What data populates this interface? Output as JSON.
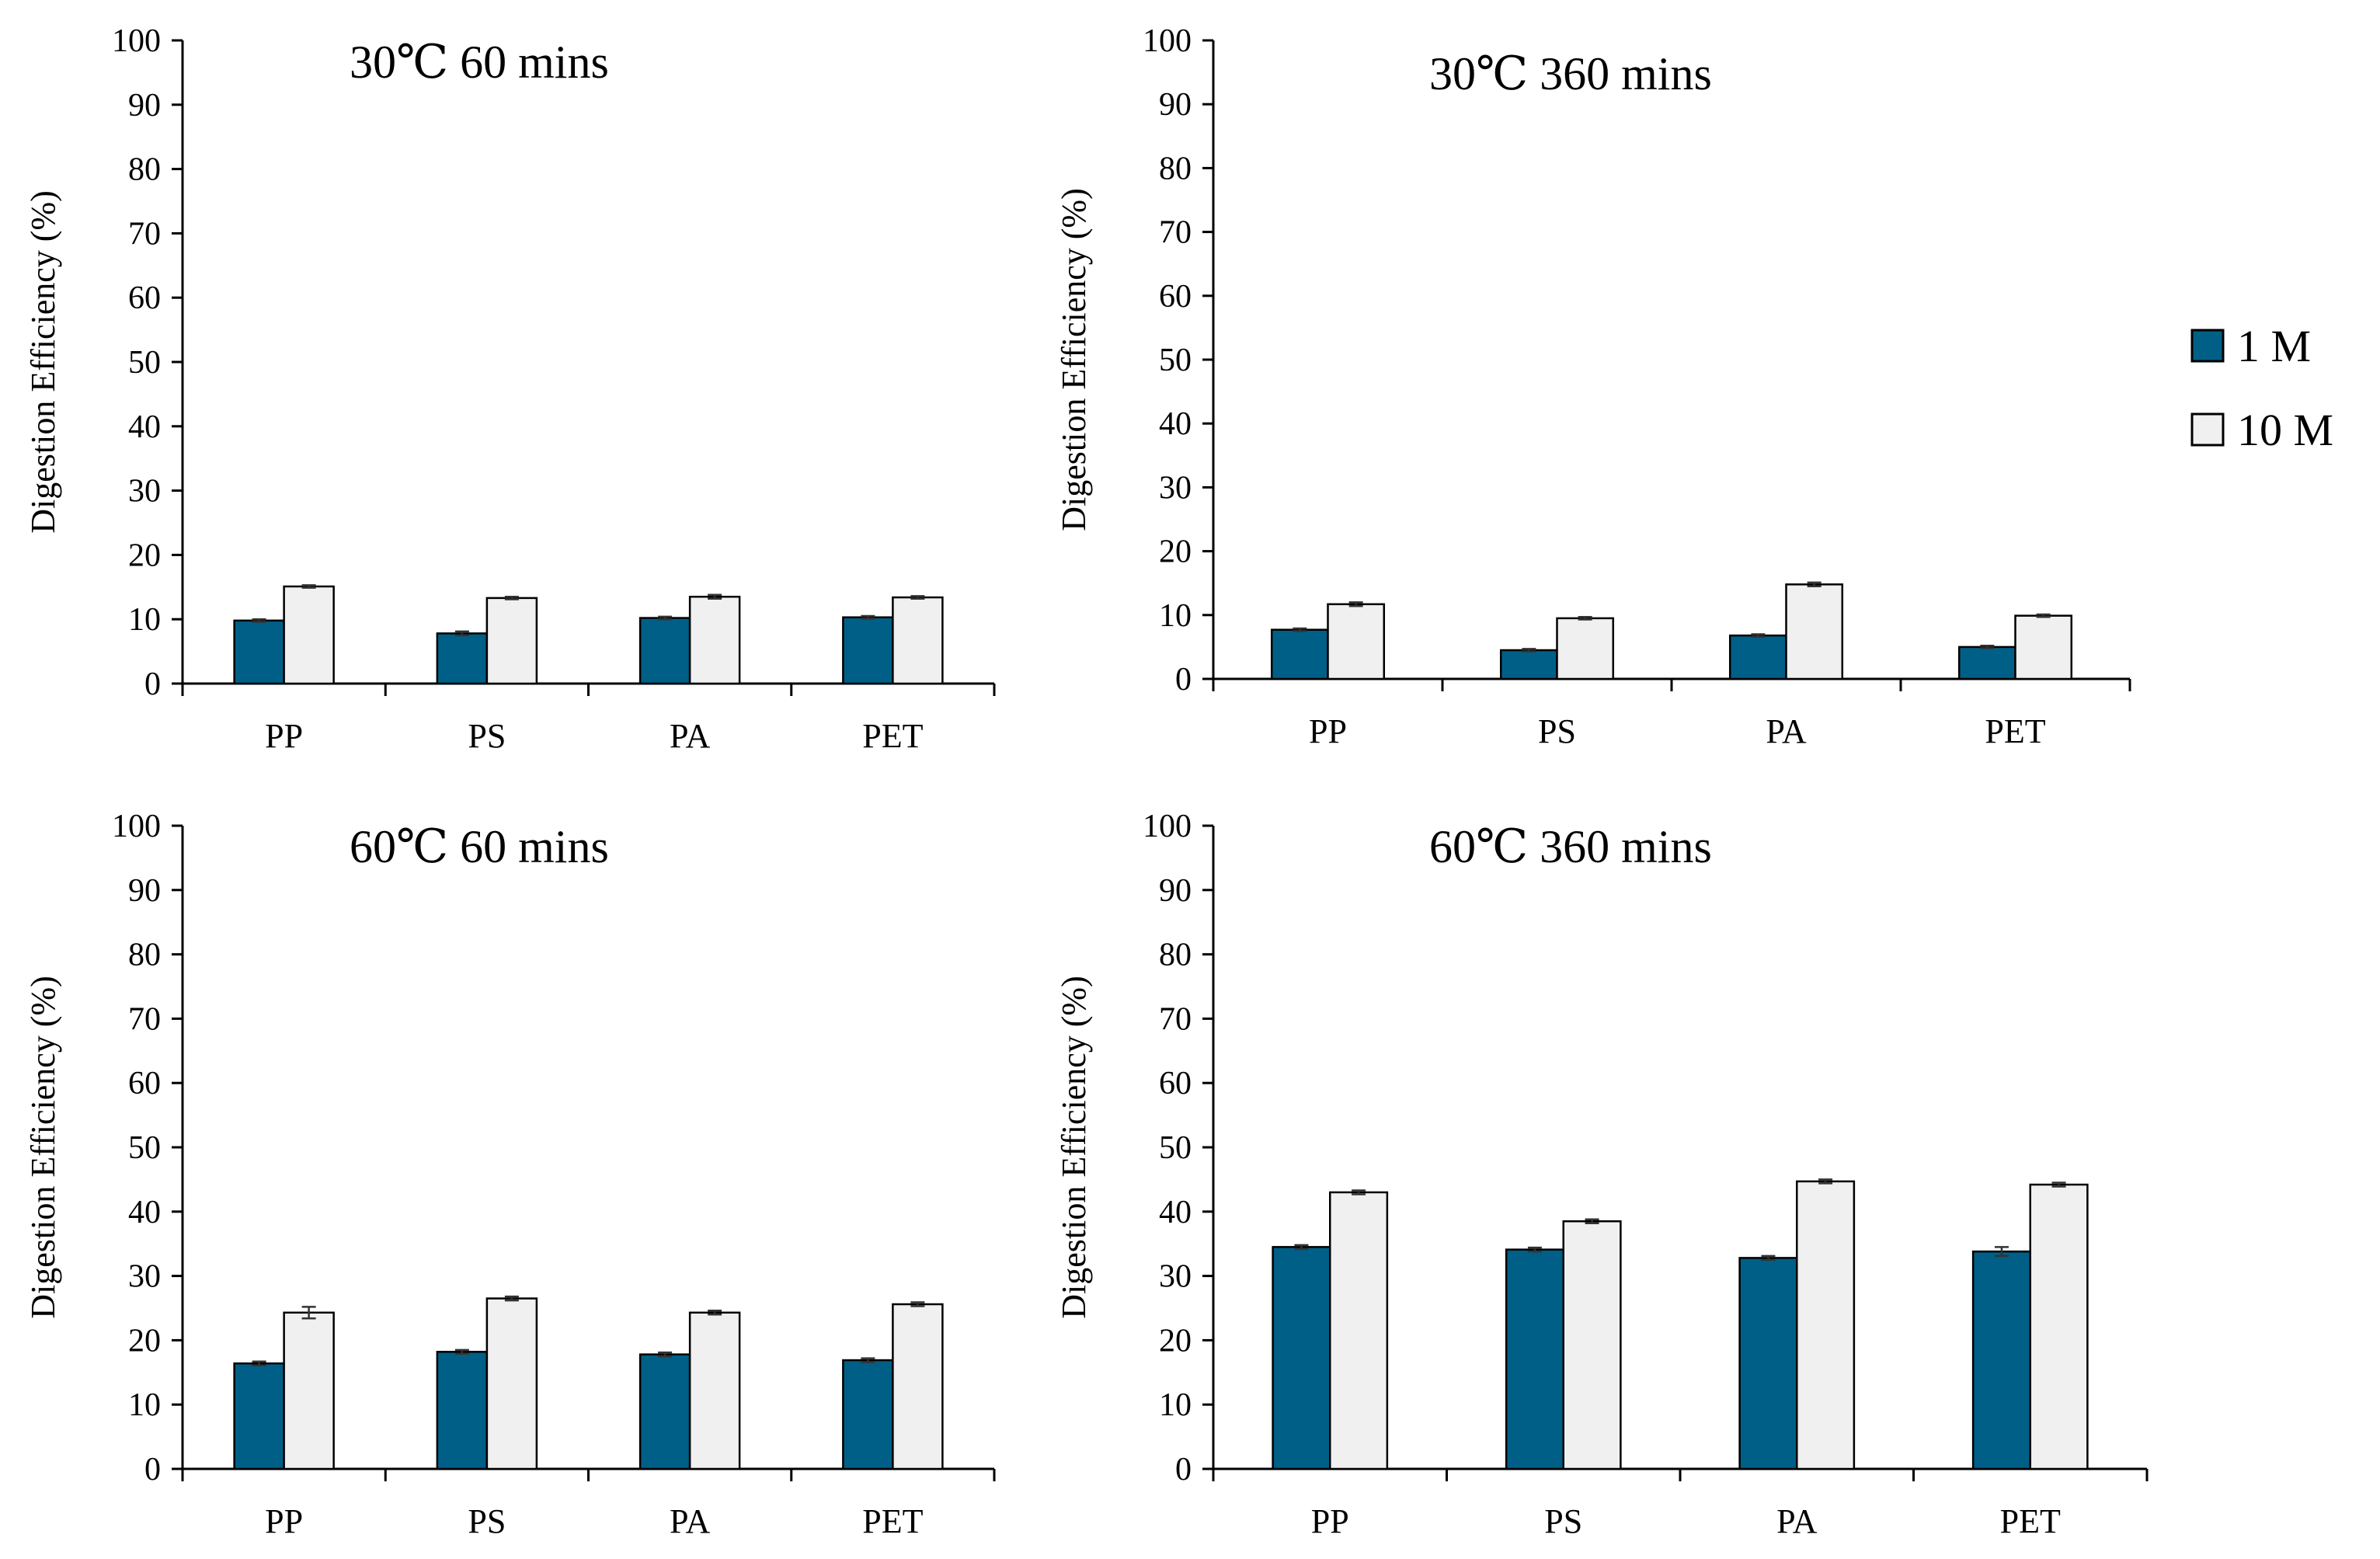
{
  "colors": {
    "series_1M": "#005F87",
    "series_10M": "#F0F0F0",
    "axis": "#000000",
    "error_bar": "#333333"
  },
  "legend": [
    {
      "label": "1 M",
      "color_key": "series_1M"
    },
    {
      "label": "10 M",
      "color_key": "series_10M"
    }
  ],
  "chart_data": [
    {
      "type": "bar",
      "title": "30℃ 60 mins",
      "ylabel": "Digestion Efficiency (%)",
      "xlabel": "",
      "ylim": [
        0,
        100
      ],
      "yticks": [
        0,
        10,
        20,
        30,
        40,
        50,
        60,
        70,
        80,
        90,
        100
      ],
      "categories": [
        "PP",
        "PS",
        "PA",
        "PET"
      ],
      "series": [
        {
          "name": "1 M",
          "values": [
            9.8,
            7.8,
            10.2,
            10.3
          ],
          "errors": [
            0.2,
            0.3,
            0.2,
            0.2
          ]
        },
        {
          "name": "10 M",
          "values": [
            15.1,
            13.3,
            13.5,
            13.4
          ],
          "errors": [
            0.2,
            0.2,
            0.3,
            0.2
          ]
        }
      ]
    },
    {
      "type": "bar",
      "title": "30℃ 360 mins",
      "ylabel": "Digestion Efficiency (%)",
      "xlabel": "",
      "ylim": [
        0,
        100
      ],
      "yticks": [
        0,
        10,
        20,
        30,
        40,
        50,
        60,
        70,
        80,
        90,
        100
      ],
      "categories": [
        "PP",
        "PS",
        "PA",
        "PET"
      ],
      "series": [
        {
          "name": "1 M",
          "values": [
            7.7,
            4.5,
            6.8,
            5.0
          ],
          "errors": [
            0.2,
            0.2,
            0.2,
            0.2
          ]
        },
        {
          "name": "10 M",
          "values": [
            11.7,
            9.5,
            14.8,
            9.9
          ],
          "errors": [
            0.3,
            0.2,
            0.3,
            0.2
          ]
        }
      ]
    },
    {
      "type": "bar",
      "title": "60℃ 60 mins",
      "ylabel": "Digestion Efficiency (%)",
      "xlabel": "",
      "ylim": [
        0,
        100
      ],
      "yticks": [
        0,
        10,
        20,
        30,
        40,
        50,
        60,
        70,
        80,
        90,
        100
      ],
      "categories": [
        "PP",
        "PS",
        "PA",
        "PET"
      ],
      "series": [
        {
          "name": "1 M",
          "values": [
            16.4,
            18.2,
            17.8,
            16.9
          ],
          "errors": [
            0.3,
            0.3,
            0.3,
            0.3
          ]
        },
        {
          "name": "10 M",
          "values": [
            24.3,
            26.5,
            24.3,
            25.6
          ],
          "errors": [
            0.9,
            0.3,
            0.3,
            0.3
          ]
        }
      ]
    },
    {
      "type": "bar",
      "title": "60℃ 360 mins",
      "ylabel": "Digestion Efficiency (%)",
      "xlabel": "",
      "ylim": [
        0,
        100
      ],
      "yticks": [
        0,
        10,
        20,
        30,
        40,
        50,
        60,
        70,
        80,
        90,
        100
      ],
      "categories": [
        "PP",
        "PS",
        "PA",
        "PET"
      ],
      "series": [
        {
          "name": "1 M",
          "values": [
            34.5,
            34.1,
            32.8,
            33.8
          ],
          "errors": [
            0.3,
            0.3,
            0.3,
            0.7
          ]
        },
        {
          "name": "10 M",
          "values": [
            43.0,
            38.5,
            44.7,
            44.2
          ],
          "errors": [
            0.3,
            0.3,
            0.3,
            0.3
          ]
        }
      ]
    }
  ]
}
